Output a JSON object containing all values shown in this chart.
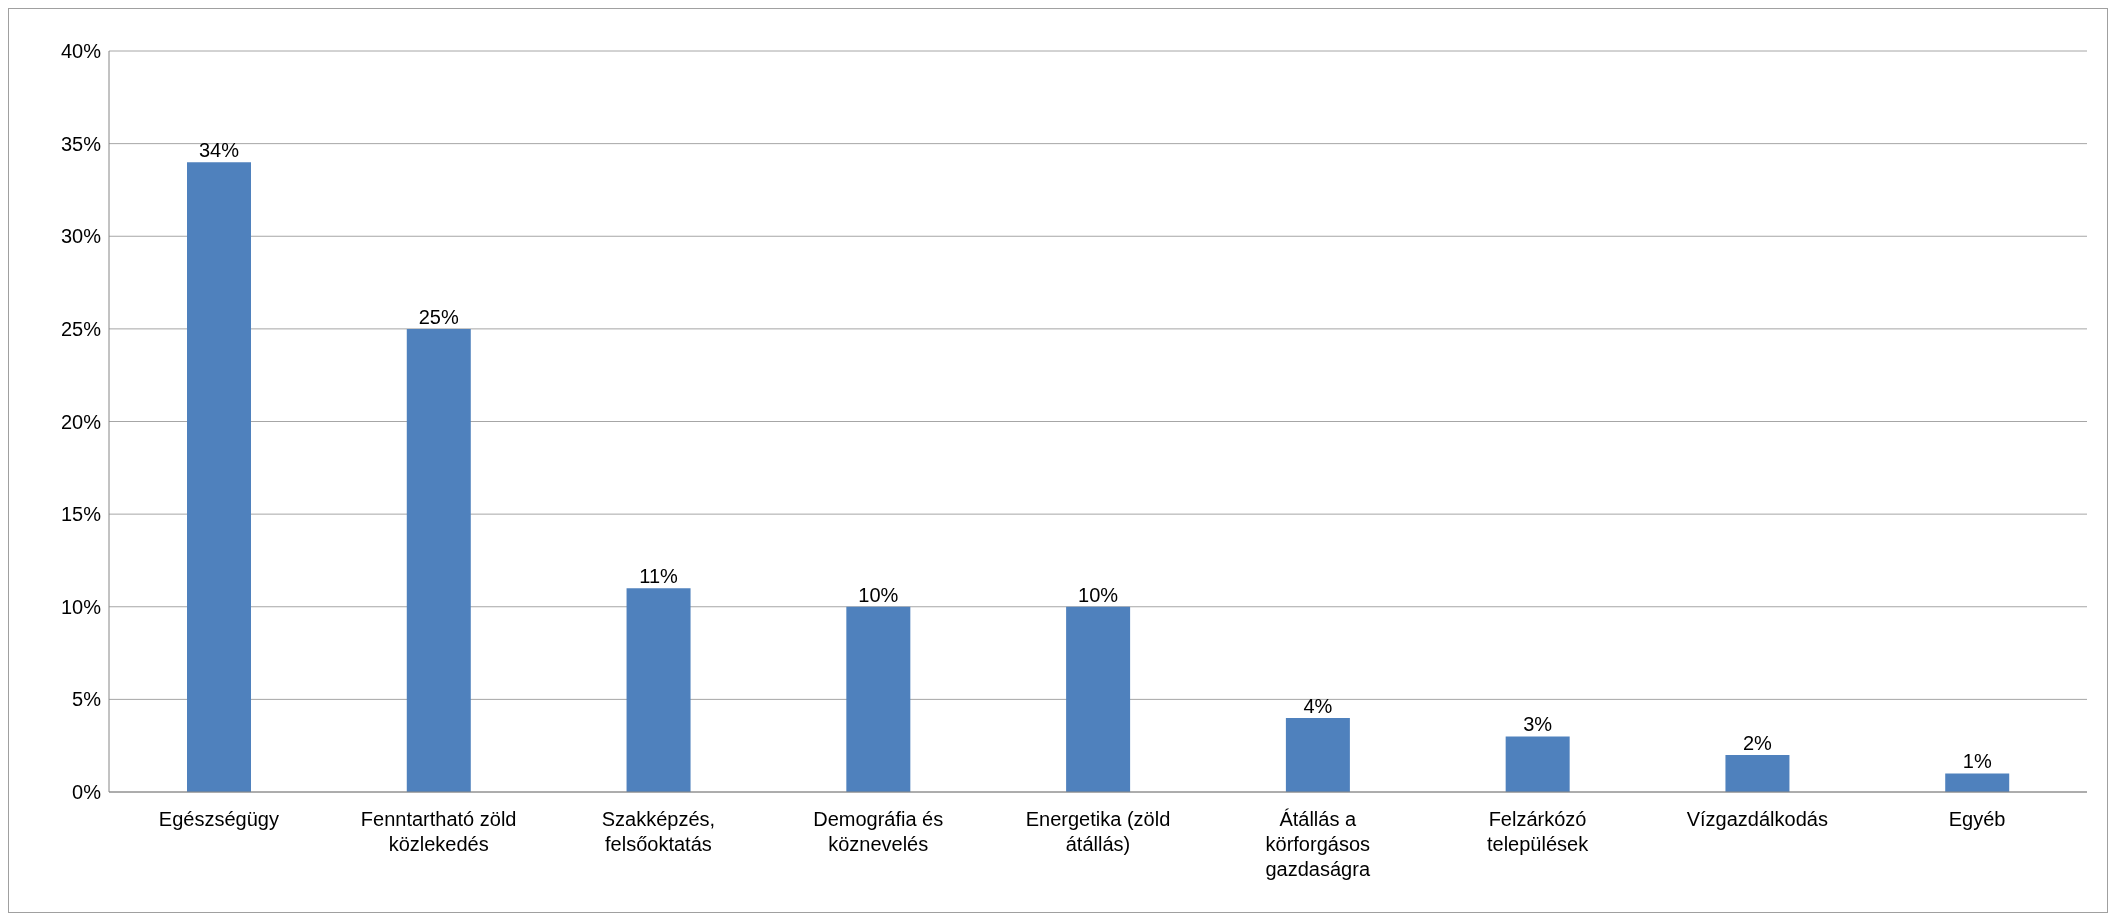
{
  "chart_data": {
    "type": "bar",
    "categories": [
      "Egészségügy",
      "Fenntartható zöld közlekedés",
      "Szakképzés, felsőoktatás",
      "Demográfia és köznevelés",
      "Energetika (zöld átállás)",
      "Átállás a körforgásos gazdaságra",
      "Felzárkózó települések",
      "Vízgazdálkodás",
      "Egyéb"
    ],
    "values": [
      34,
      25,
      11,
      10,
      10,
      4,
      3,
      2,
      1
    ],
    "value_labels": [
      "34%",
      "25%",
      "11%",
      "10%",
      "10%",
      "4%",
      "3%",
      "2%",
      "1%"
    ],
    "color": "#4f81bd",
    "ylim": [
      0,
      40
    ],
    "yticks": [
      {
        "value": 0,
        "label": "0%"
      },
      {
        "value": 5,
        "label": "5%"
      },
      {
        "value": 10,
        "label": "10%"
      },
      {
        "value": 15,
        "label": "15%"
      },
      {
        "value": 20,
        "label": "20%"
      },
      {
        "value": 25,
        "label": "25%"
      },
      {
        "value": 30,
        "label": "30%"
      },
      {
        "value": 35,
        "label": "35%"
      },
      {
        "value": 40,
        "label": "40%"
      }
    ],
    "grid": "y",
    "legend": false
  }
}
